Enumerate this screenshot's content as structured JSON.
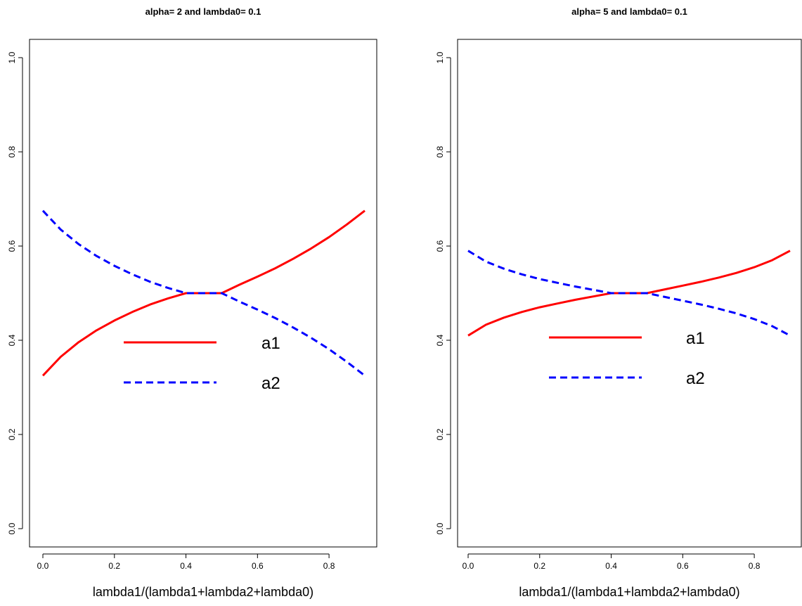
{
  "chart_data": [
    {
      "type": "line",
      "title": "alpha= 2  and  lambda0= 0.1",
      "xlabel": "lambda1/(lambda1+lambda2+lambda0)",
      "ylabel": "",
      "xlim": [
        0,
        0.9
      ],
      "ylim": [
        0,
        1
      ],
      "x_ticks": [
        "0.0",
        "0.2",
        "0.4",
        "0.6",
        "0.8"
      ],
      "y_ticks": [
        "0.0",
        "0.2",
        "0.4",
        "0.6",
        "0.8",
        "1.0"
      ],
      "grid": false,
      "legend_position": "center",
      "series": [
        {
          "name": "a1",
          "color": "#ff0000",
          "line_style": "solid",
          "x": [
            0,
            0.05,
            0.1,
            0.15,
            0.2,
            0.25,
            0.3,
            0.35,
            0.4,
            0.45,
            0.5,
            0.55,
            0.6,
            0.65,
            0.7,
            0.75,
            0.8,
            0.85,
            0.9
          ],
          "y": [
            0.325,
            0.365,
            0.396,
            0.421,
            0.442,
            0.46,
            0.476,
            0.489,
            0.5,
            0.5,
            0.5,
            0.518,
            0.535,
            0.553,
            0.573,
            0.595,
            0.619,
            0.646,
            0.675
          ]
        },
        {
          "name": "a2",
          "color": "#0000ff",
          "line_style": "dashed",
          "x": [
            0,
            0.05,
            0.1,
            0.15,
            0.2,
            0.25,
            0.3,
            0.35,
            0.4,
            0.45,
            0.5,
            0.55,
            0.6,
            0.65,
            0.7,
            0.75,
            0.8,
            0.85,
            0.9
          ],
          "y": [
            0.675,
            0.635,
            0.604,
            0.579,
            0.558,
            0.54,
            0.524,
            0.511,
            0.5,
            0.5,
            0.5,
            0.482,
            0.465,
            0.447,
            0.427,
            0.405,
            0.381,
            0.354,
            0.325
          ]
        }
      ]
    },
    {
      "type": "line",
      "title": "alpha= 5  and  lambda0= 0.1",
      "xlabel": "lambda1/(lambda1+lambda2+lambda0)",
      "ylabel": "",
      "xlim": [
        0,
        0.9
      ],
      "ylim": [
        0,
        1
      ],
      "x_ticks": [
        "0.0",
        "0.2",
        "0.4",
        "0.6",
        "0.8"
      ],
      "y_ticks": [
        "0.0",
        "0.2",
        "0.4",
        "0.6",
        "0.8",
        "1.0"
      ],
      "grid": false,
      "legend_position": "center",
      "series": [
        {
          "name": "a1",
          "color": "#ff0000",
          "line_style": "solid",
          "x": [
            0,
            0.05,
            0.1,
            0.15,
            0.2,
            0.25,
            0.3,
            0.35,
            0.4,
            0.45,
            0.5,
            0.55,
            0.6,
            0.65,
            0.7,
            0.75,
            0.8,
            0.85,
            0.9
          ],
          "y": [
            0.41,
            0.433,
            0.448,
            0.46,
            0.47,
            0.478,
            0.486,
            0.493,
            0.5,
            0.5,
            0.5,
            0.508,
            0.516,
            0.524,
            0.533,
            0.543,
            0.555,
            0.57,
            0.59
          ]
        },
        {
          "name": "a2",
          "color": "#0000ff",
          "line_style": "dashed",
          "x": [
            0,
            0.05,
            0.1,
            0.15,
            0.2,
            0.25,
            0.3,
            0.35,
            0.4,
            0.45,
            0.5,
            0.55,
            0.6,
            0.65,
            0.7,
            0.75,
            0.8,
            0.85,
            0.9
          ],
          "y": [
            0.59,
            0.567,
            0.552,
            0.54,
            0.53,
            0.522,
            0.514,
            0.507,
            0.5,
            0.5,
            0.5,
            0.492,
            0.484,
            0.476,
            0.467,
            0.457,
            0.445,
            0.43,
            0.41
          ]
        }
      ]
    }
  ]
}
